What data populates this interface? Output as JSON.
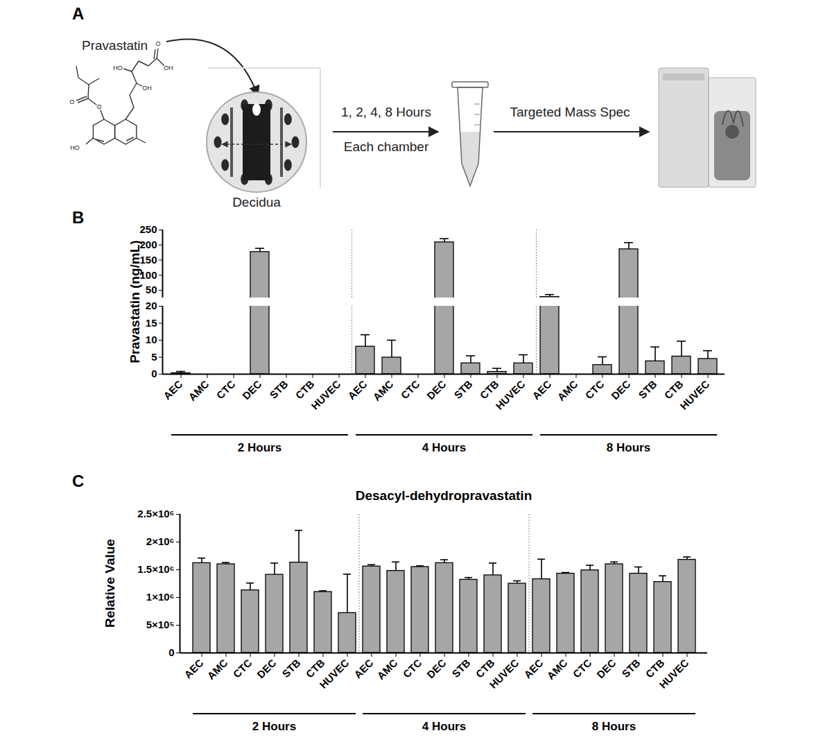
{
  "panel_labels": [
    "A",
    "B",
    "C"
  ],
  "diagram": {
    "compound": "Pravastatin",
    "atom_labels": [
      "HO",
      "OH",
      "O",
      "OH",
      "O",
      "O",
      "HO"
    ],
    "sample": "Decidua",
    "step1_line1": "1, 2, 4, 8 Hours",
    "step1_line2": "Each chamber",
    "step2": "Targeted Mass Spec"
  },
  "chart_data": [
    {
      "type": "bar",
      "y_label": "Pravastatin (ng/mL)",
      "color": "#a6a6a6",
      "y_segments": [
        {
          "ylim": [
            0,
            20
          ],
          "yticks": [
            0,
            5,
            10,
            15,
            20
          ]
        },
        {
          "ylim": [
            25,
            250
          ],
          "yticks": [
            50,
            100,
            150,
            200,
            250
          ]
        }
      ],
      "groups": [
        {
          "name": "2 Hours",
          "categories": [
            "AEC",
            "AMC",
            "CTC",
            "DEC",
            "STB",
            "CTB",
            "HUVEC"
          ],
          "values": [
            0.3,
            0,
            0,
            177,
            0,
            0,
            0
          ],
          "errors": [
            0.5,
            null,
            null,
            12,
            null,
            null,
            null
          ]
        },
        {
          "name": "4 Hours",
          "categories": [
            "AEC",
            "AMC",
            "CTC",
            "DEC",
            "STB",
            "CTB",
            "HUVEC"
          ],
          "values": [
            8.1,
            4.9,
            0,
            209,
            3.2,
            0.7,
            3.2
          ],
          "errors": [
            3.5,
            5.1,
            null,
            12,
            2.2,
            1,
            2.5
          ]
        },
        {
          "name": "8 Hours",
          "categories": [
            "AEC",
            "AMC",
            "CTC",
            "DEC",
            "STB",
            "CTB",
            "HUVEC"
          ],
          "values": [
            28,
            0,
            2.7,
            186,
            3.8,
            5.2,
            4.5
          ],
          "errors": [
            8,
            null,
            2.4,
            22,
            4.2,
            4.5,
            2.4
          ]
        }
      ]
    },
    {
      "type": "bar",
      "title": "Desacyl-dehydropravastatin",
      "y_label": "Relative Value",
      "color": "#a6a6a6",
      "ylim": [
        0,
        2500000
      ],
      "yticks": [
        0,
        {
          "value": 500000,
          "label": "5×10⁵"
        },
        {
          "value": 1000000,
          "label": "1×10⁶"
        },
        {
          "value": 1500000,
          "label": "1.5×10⁶"
        },
        {
          "value": 2000000,
          "label": "2×10⁶"
        },
        {
          "value": 2500000,
          "label": "2.5×10⁶"
        }
      ],
      "groups": [
        {
          "name": "2 Hours",
          "categories": [
            "AEC",
            "AMC",
            "CTC",
            "DEC",
            "STB",
            "CTB",
            "HUVEC"
          ],
          "values": [
            1620000,
            1600000,
            1130000,
            1410000,
            1630000,
            1100000,
            720000
          ],
          "errors": [
            90000,
            30000,
            130000,
            210000,
            580000,
            20000,
            700000
          ]
        },
        {
          "name": "4 Hours",
          "categories": [
            "AEC",
            "AMC",
            "CTC",
            "DEC",
            "STB",
            "CTB",
            "HUVEC"
          ],
          "values": [
            1560000,
            1480000,
            1550000,
            1620000,
            1320000,
            1400000,
            1250000
          ],
          "errors": [
            30000,
            160000,
            20000,
            60000,
            40000,
            220000,
            50000
          ]
        },
        {
          "name": "8 Hours",
          "categories": [
            "AEC",
            "AMC",
            "CTC",
            "DEC",
            "STB",
            "CTB",
            "HUVEC"
          ],
          "values": [
            1330000,
            1430000,
            1490000,
            1600000,
            1430000,
            1280000,
            1680000
          ],
          "errors": [
            360000,
            20000,
            90000,
            40000,
            120000,
            110000,
            50000
          ]
        }
      ]
    }
  ]
}
